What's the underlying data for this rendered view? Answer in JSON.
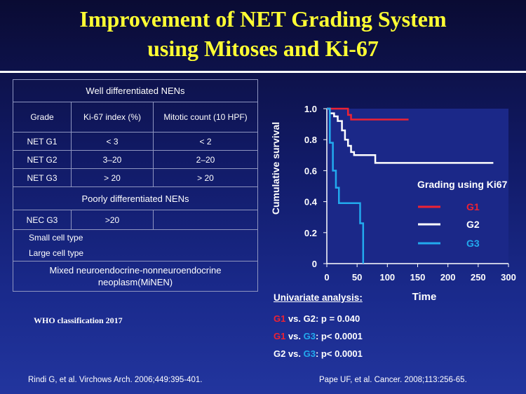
{
  "title": {
    "line1": "Improvement  of NET Grading System",
    "line2": "using Mitoses and Ki-67"
  },
  "who_table": {
    "well_header": "Well differentiated NENs",
    "columns": [
      "Grade",
      "Ki-67 index (%)",
      "Mitotic count (10 HPF)"
    ],
    "rows": [
      [
        "NET G1",
        "< 3",
        "< 2"
      ],
      [
        "NET G2",
        "3–20",
        "2–20"
      ],
      [
        "NET G3",
        "> 20",
        "> 20"
      ]
    ],
    "poorly_header": "Poorly differentiated NENs",
    "nec_row": [
      "NEC G3",
      ">20",
      ""
    ],
    "small_cell": "Small cell type",
    "large_cell": "Large cell type",
    "mixed": "Mixed neuroendocrine-nonneuroendocrine neoplasm(MiNEN)",
    "note": "WHO classification 2017"
  },
  "univariate": {
    "title": "Univariate analysis:",
    "c1": {
      "a": "G1",
      "vs": " vs. G2: ",
      "p": "p = 0.040"
    },
    "c2": {
      "a": "G1",
      "vs": " vs. ",
      "b": "G3",
      "p": ": p< 0.0001"
    },
    "c3": {
      "a": "G2 vs. ",
      "b": "G3",
      "p": ": p< 0.0001"
    }
  },
  "refs": {
    "left": "Rindi G, et al. Virchows Arch. 2006;449:395-401.",
    "right": "Pape UF, et al. Cancer. 2008;113:256-65."
  },
  "colors": {
    "g1": "#ee2233",
    "g2": "#ffffff",
    "g3": "#22aaee"
  },
  "chart_data": {
    "type": "line",
    "step": true,
    "xlabel": "Time",
    "ylabel": "Cumulative survival",
    "xlim": [
      0,
      300
    ],
    "ylim": [
      0,
      1.0
    ],
    "x_ticks": [
      "0",
      "50",
      "100",
      "150",
      "200",
      "250",
      "300"
    ],
    "y_ticks": [
      "0",
      "0.2",
      "0.4",
      "0.6",
      "0.8",
      "1.0"
    ],
    "legend_title": "Grading using Ki67",
    "legend_position": "right",
    "series": [
      {
        "name": "G1",
        "color": "#ee2233",
        "points": [
          [
            0,
            1.0
          ],
          [
            20,
            1.0
          ],
          [
            35,
            0.96
          ],
          [
            40,
            0.93
          ],
          [
            135,
            0.93
          ]
        ]
      },
      {
        "name": "G2",
        "color": "#ffffff",
        "points": [
          [
            0,
            1.0
          ],
          [
            5,
            0.97
          ],
          [
            12,
            0.95
          ],
          [
            18,
            0.92
          ],
          [
            25,
            0.86
          ],
          [
            30,
            0.8
          ],
          [
            35,
            0.76
          ],
          [
            40,
            0.72
          ],
          [
            45,
            0.7
          ],
          [
            75,
            0.7
          ],
          [
            80,
            0.65
          ],
          [
            275,
            0.65
          ]
        ]
      },
      {
        "name": "G3",
        "color": "#22aaee",
        "points": [
          [
            0,
            1.0
          ],
          [
            5,
            0.78
          ],
          [
            10,
            0.6
          ],
          [
            15,
            0.49
          ],
          [
            20,
            0.39
          ],
          [
            50,
            0.39
          ],
          [
            55,
            0.26
          ],
          [
            60,
            0.0
          ]
        ]
      }
    ]
  }
}
